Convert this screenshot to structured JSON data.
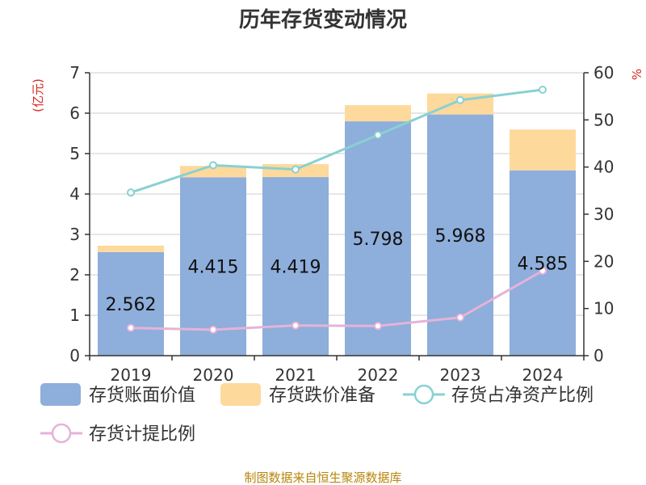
{
  "chart_data": {
    "type": "bar",
    "title": "历年存货变动情况",
    "categories": [
      "2019",
      "2020",
      "2021",
      "2022",
      "2023",
      "2024"
    ],
    "left_axis_unit": "(亿元)",
    "right_axis_unit": "%",
    "ylim_left": [
      0,
      7
    ],
    "ylim_right": [
      0,
      60
    ],
    "yticks_left": [
      0,
      1,
      2,
      3,
      4,
      5,
      6,
      7
    ],
    "yticks_right": [
      0,
      10,
      20,
      30,
      40,
      50,
      60
    ],
    "grid": true,
    "series": [
      {
        "name": "存货账面价值",
        "type": "bar",
        "axis": "left",
        "stack": "s",
        "values": [
          2.562,
          4.415,
          4.419,
          5.798,
          5.968,
          4.585
        ],
        "value_labels": [
          "2.562",
          "4.415",
          "4.419",
          "5.798",
          "5.968",
          "4.585"
        ]
      },
      {
        "name": "存货跌价准备",
        "type": "bar",
        "axis": "left",
        "stack": "s",
        "values": [
          0.16,
          0.28,
          0.32,
          0.4,
          0.52,
          1.01
        ]
      },
      {
        "name": "存货占净资产比例",
        "type": "line",
        "axis": "right",
        "values": [
          34.6,
          40.4,
          39.5,
          46.8,
          54.2,
          56.4
        ]
      },
      {
        "name": "存货计提比例",
        "type": "line",
        "axis": "right",
        "values": [
          5.9,
          5.5,
          6.4,
          6.3,
          8.1,
          18.0
        ]
      }
    ],
    "legend_position": "bottom"
  },
  "colors": {
    "inventory_book_value": "#8eaedb",
    "impairment_reserve": "#fdd99b",
    "ratio_to_net_assets": "#88d1d3",
    "provision_ratio": "#e5b3d8",
    "grid": "#cccccc",
    "axis": "#333333"
  },
  "source": "制图数据来自恒生聚源数据库"
}
